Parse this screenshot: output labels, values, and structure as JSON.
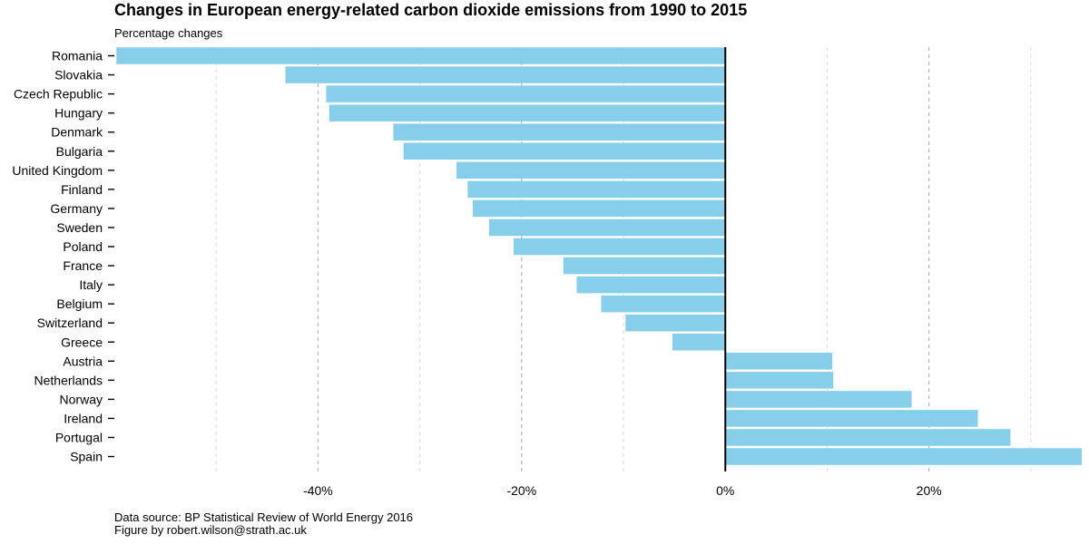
{
  "chart_data": {
    "type": "bar",
    "orientation": "horizontal",
    "title": "Changes in European energy-related carbon dioxide emissions from 1990 to 2015",
    "subtitle": "Percentage changes",
    "xlabel": "",
    "ylabel": "",
    "categories": [
      "Romania",
      "Slovakia",
      "Czech Republic",
      "Hungary",
      "Denmark",
      "Bulgaria",
      "United Kingdom",
      "Finland",
      "Germany",
      "Sweden",
      "Poland",
      "France",
      "Italy",
      "Belgium",
      "Switzerland",
      "Greece",
      "Austria",
      "Netherlands",
      "Norway",
      "Ireland",
      "Portugal",
      "Spain"
    ],
    "values": [
      -59.8,
      -43.2,
      -39.2,
      -38.9,
      -32.6,
      -31.6,
      -26.4,
      -25.3,
      -24.8,
      -23.2,
      -20.8,
      -15.9,
      -14.6,
      -12.2,
      -9.8,
      -5.2,
      10.5,
      10.6,
      18.3,
      24.8,
      28.0,
      35.0
    ],
    "xlim": [
      -60,
      35
    ],
    "x_ticks": [
      -40,
      -20,
      0,
      20
    ],
    "x_tick_labels": [
      "-40%",
      "-20%",
      "0%",
      "20%"
    ],
    "grid": "vertical dashed",
    "bar_color": "#87CEEB",
    "zero_line_color": "#000000",
    "legend": "none",
    "footer": [
      "Data source: BP Statistical Review of World Energy 2016",
      "Figure by robert.wilson@strath.ac.uk"
    ]
  }
}
